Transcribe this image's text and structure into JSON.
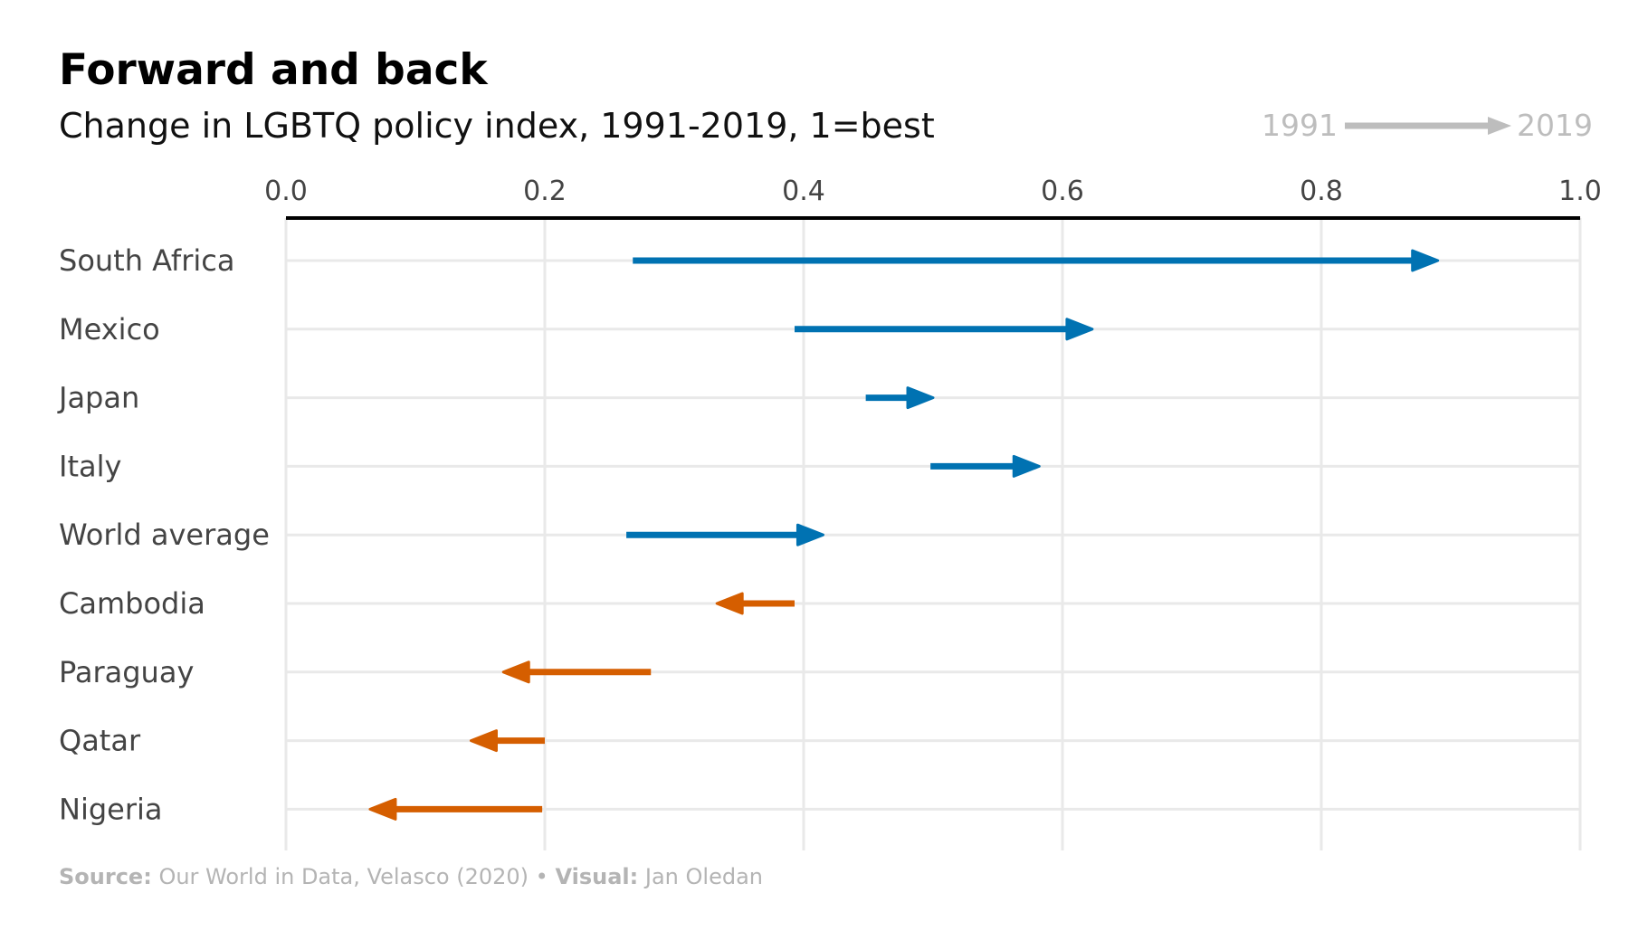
{
  "title": "Forward and back",
  "subtitle": "Change in LGBTQ policy index, 1991-2019, 1=best",
  "legend": {
    "start_label": "1991",
    "end_label": "2019",
    "color": "#bdbdbd"
  },
  "footer": {
    "source_label": "Source:",
    "source_text": "Our World in Data, Velasco (2020)",
    "separator": "•",
    "visual_label": "Visual:",
    "visual_text": "Jan Oledan"
  },
  "colors": {
    "improved": "#0072b2",
    "worsened": "#d55e00",
    "grid": "#e9e9e9",
    "axis": "#000000"
  },
  "chart_data": {
    "type": "arrow",
    "xlim": [
      0,
      1
    ],
    "x_ticks": [
      "0.0",
      "0.2",
      "0.4",
      "0.6",
      "0.8",
      "1.0"
    ],
    "x_tick_values": [
      0,
      0.2,
      0.4,
      0.6,
      0.8,
      1.0
    ],
    "x_axis_position": "top",
    "grid": true,
    "series_start_label": "1991",
    "series_end_label": "2019",
    "rows": [
      {
        "country": "South Africa",
        "start": 0.268,
        "end": 0.89
      },
      {
        "country": "Mexico",
        "start": 0.393,
        "end": 0.623
      },
      {
        "country": "Japan",
        "start": 0.448,
        "end": 0.5
      },
      {
        "country": "Italy",
        "start": 0.498,
        "end": 0.582
      },
      {
        "country": "World average",
        "start": 0.263,
        "end": 0.415
      },
      {
        "country": "Cambodia",
        "start": 0.393,
        "end": 0.333
      },
      {
        "country": "Paraguay",
        "start": 0.282,
        "end": 0.168
      },
      {
        "country": "Qatar",
        "start": 0.2,
        "end": 0.143
      },
      {
        "country": "Nigeria",
        "start": 0.198,
        "end": 0.065
      }
    ]
  }
}
